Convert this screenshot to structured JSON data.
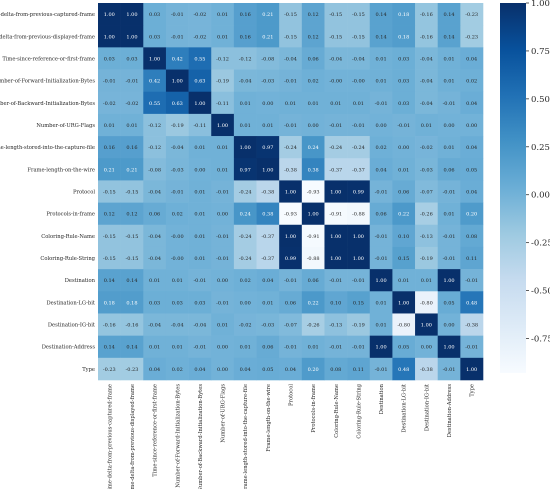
{
  "chart_data": {
    "type": "heatmap",
    "title": "",
    "xlabel": "",
    "ylabel": "",
    "labels": [
      "Time-delta-from-previous-captured-frame",
      "Time-delta-from-previous-displayed-frame",
      "Time-since-reference-or-first-frame",
      "Number-of-Forward-Initialization-Bytes",
      "Number-of-Backward-Initialization-Bytes",
      "Number-of-URG-Flags",
      "Frame-length-stored-into-the-capture-file",
      "Frame-length-on-the-wire",
      "Protocol",
      "Protocols-in-frame",
      "Coloring-Rule-Name",
      "Coloring-Rule-String",
      "Destination",
      "Destination-LG-bit",
      "Destination-IG-bit",
      "Destination-Address",
      "Type"
    ],
    "values": [
      [
        "1.00",
        "1.00",
        "0.03",
        "-0.01",
        "-0.02",
        "0.01",
        "0.16",
        "0.21",
        "-0.15",
        "0.12",
        "-0.15",
        "-0.15",
        "0.14",
        "0.18",
        "-0.16",
        "0.14",
        "-0.23"
      ],
      [
        "1.00",
        "1.00",
        "0.03",
        "-0.01",
        "-0.02",
        "0.01",
        "0.16",
        "0.21",
        "-0.15",
        "0.12",
        "-0.15",
        "-0.15",
        "0.14",
        "0.18",
        "-0.16",
        "0.14",
        "-0.23"
      ],
      [
        "0.03",
        "0.03",
        "1.00",
        "0.42",
        "0.55",
        "-0.12",
        "-0.12",
        "-0.08",
        "-0.04",
        "0.06",
        "-0.04",
        "-0.04",
        "0.01",
        "0.03",
        "-0.04",
        "0.01",
        "0.04"
      ],
      [
        "-0.01",
        "-0.01",
        "0.42",
        "1.00",
        "0.63",
        "-0.19",
        "-0.04",
        "-0.03",
        "-0.01",
        "0.02",
        "-0.00",
        "-0.00",
        "0.01",
        "0.03",
        "-0.04",
        "0.01",
        "0.02"
      ],
      [
        "-0.02",
        "-0.02",
        "0.55",
        "0.63",
        "1.00",
        "-0.11",
        "0.01",
        "0.00",
        "0.01",
        "0.01",
        "0.01",
        "0.01",
        "-0.01",
        "0.03",
        "-0.04",
        "-0.01",
        "0.04"
      ],
      [
        "0.01",
        "0.01",
        "-0.12",
        "-0.19",
        "-0.11",
        "1.00",
        "0.01",
        "0.01",
        "-0.01",
        "0.00",
        "-0.01",
        "-0.01",
        "0.00",
        "-0.01",
        "0.01",
        "0.00",
        "0.00"
      ],
      [
        "0.16",
        "0.16",
        "-0.12",
        "-0.04",
        "0.01",
        "0.01",
        "1.00",
        "0.97",
        "-0.24",
        "0.24",
        "-0.24",
        "-0.24",
        "0.02",
        "0.00",
        "-0.02",
        "0.01",
        "0.04"
      ],
      [
        "0.21",
        "0.21",
        "-0.08",
        "-0.03",
        "0.00",
        "0.01",
        "0.97",
        "1.00",
        "-0.38",
        "0.38",
        "-0.37",
        "-0.37",
        "0.04",
        "0.01",
        "-0.03",
        "0.06",
        "0.05"
      ],
      [
        "-0.15",
        "-0.15",
        "-0.04",
        "-0.01",
        "0.01",
        "-0.01",
        "-0.24",
        "-0.38",
        "1.00",
        "-0.93",
        "1.00",
        "0.99",
        "-0.01",
        "0.06",
        "-0.07",
        "-0.01",
        "0.04"
      ],
      [
        "0.12",
        "0.12",
        "0.06",
        "0.02",
        "0.01",
        "0.00",
        "0.24",
        "0.38",
        "-0.93",
        "1.00",
        "-0.91",
        "-0.88",
        "0.06",
        "0.22",
        "-0.26",
        "0.01",
        "0.20"
      ],
      [
        "-0.15",
        "-0.15",
        "-0.04",
        "-0.00",
        "0.01",
        "-0.01",
        "-0.24",
        "-0.37",
        "1.00",
        "-0.91",
        "1.00",
        "1.00",
        "-0.01",
        "0.10",
        "-0.13",
        "-0.01",
        "0.08"
      ],
      [
        "-0.15",
        "-0.15",
        "-0.04",
        "-0.00",
        "0.01",
        "-0.01",
        "-0.24",
        "-0.37",
        "0.99",
        "-0.88",
        "1.00",
        "1.00",
        "-0.01",
        "0.15",
        "-0.19",
        "-0.01",
        "0.11"
      ],
      [
        "0.14",
        "0.14",
        "0.01",
        "0.01",
        "-0.01",
        "0.00",
        "0.02",
        "0.04",
        "-0.01",
        "0.06",
        "-0.01",
        "-0.01",
        "1.00",
        "0.01",
        "0.01",
        "1.00",
        "-0.01"
      ],
      [
        "0.18",
        "0.18",
        "0.03",
        "0.03",
        "0.03",
        "-0.01",
        "0.00",
        "0.01",
        "0.06",
        "0.22",
        "0.10",
        "0.15",
        "0.01",
        "1.00",
        "-0.80",
        "0.05",
        "0.48"
      ],
      [
        "-0.16",
        "-0.16",
        "-0.04",
        "-0.04",
        "-0.04",
        "0.01",
        "-0.02",
        "-0.03",
        "-0.07",
        "-0.26",
        "-0.13",
        "-0.19",
        "0.01",
        "-0.80",
        "1.00",
        "0.00",
        "-0.38"
      ],
      [
        "0.14",
        "0.14",
        "0.01",
        "0.01",
        "-0.01",
        "0.00",
        "0.01",
        "0.06",
        "-0.01",
        "0.01",
        "-0.01",
        "-0.01",
        "1.00",
        "0.05",
        "0.00",
        "1.00",
        "-0.01"
      ],
      [
        "-0.23",
        "-0.23",
        "0.04",
        "0.02",
        "0.04",
        "0.00",
        "0.04",
        "0.05",
        "0.04",
        "0.20",
        "0.08",
        "0.11",
        "-0.01",
        "0.48",
        "-0.38",
        "-0.01",
        "1.00"
      ]
    ],
    "vmin": -0.93,
    "vmax": 1.0,
    "colorscale": [
      "#f7fbff",
      "#deebf7",
      "#c6dbef",
      "#9ecae1",
      "#6baed6",
      "#4292c6",
      "#2171b5",
      "#08519c",
      "#08306b"
    ],
    "colorbar_ticks": [
      "1.00",
      "0.75",
      "0.50",
      "0.25",
      "0.00",
      "-0.25",
      "-0.50",
      "-0.75"
    ],
    "grid": false,
    "legend": "right colorbar"
  }
}
